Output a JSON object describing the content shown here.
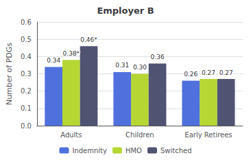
{
  "chart_data": {
    "type": "bar",
    "title": "Employer B",
    "ylabel": "Number of PDGs",
    "categories": [
      "Adults",
      "Children",
      "Early Retirees"
    ],
    "series": [
      {
        "name": "Indemnity",
        "values": [
          0.34,
          0.31,
          0.26
        ],
        "value_labels": [
          "0.34",
          "0.31",
          "0.26"
        ]
      },
      {
        "name": "HMO",
        "values": [
          0.38,
          0.3,
          0.27
        ],
        "value_labels": [
          "0.38*",
          "0.30",
          "0.27"
        ]
      },
      {
        "name": "Switched",
        "values": [
          0.46,
          0.36,
          0.27
        ],
        "value_labels": [
          "0.46*",
          "0.36",
          "0.27"
        ]
      }
    ],
    "ylim": [
      0,
      0.6
    ],
    "yticks": [
      {
        "value": 0.0,
        "label": "0.0"
      },
      0.1,
      0.2,
      0.3,
      0.4,
      0.5,
      0.6
    ],
    "grid": true,
    "legend": "bottom",
    "data_labels": true
  }
}
